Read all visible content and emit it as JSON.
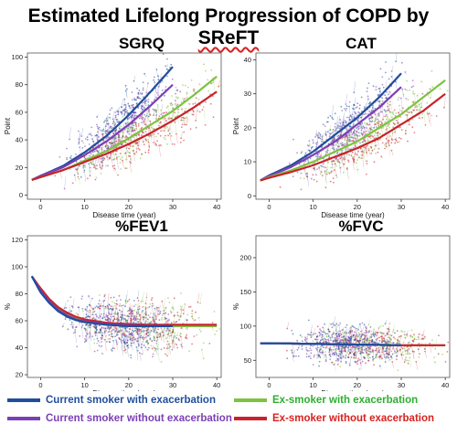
{
  "title": {
    "before": "Estimated Lifelong Progression of COPD by ",
    "emph": "SReFT"
  },
  "legend": [
    {
      "label": "Current smoker with exacerbation",
      "color": "#1f4e9c",
      "text_color": "#1f4e9c"
    },
    {
      "label": "Current smoker without exacerbation",
      "color": "#7b3fb5",
      "text_color": "#7b3fb5"
    },
    {
      "label": "Ex-smoker with exacerbation",
      "color": "#7cc341",
      "text_color": "#2fae2f"
    },
    {
      "label": "Ex-smoker without exacerbation",
      "color": "#c8232c",
      "text_color": "#d9211f"
    }
  ],
  "chart_data": [
    {
      "type": "line",
      "title": "SGRQ",
      "xlabel": "Disease time (year)",
      "ylabel": "Point",
      "xlim": [
        -3,
        41
      ],
      "ylim": [
        -3,
        103
      ],
      "xticks": [
        0,
        10,
        20,
        30,
        40
      ],
      "yticks": [
        0,
        20,
        40,
        60,
        80,
        100
      ],
      "scatter": true,
      "series": [
        {
          "legend_index": 0,
          "x": [
            -2,
            0,
            5,
            10,
            15,
            20,
            25,
            30
          ],
          "values": [
            11,
            14,
            21,
            31,
            43,
            58,
            75,
            93
          ]
        },
        {
          "legend_index": 1,
          "x": [
            -2,
            0,
            5,
            10,
            15,
            20,
            25,
            30
          ],
          "values": [
            11,
            14,
            20,
            29,
            39,
            51,
            65,
            80
          ]
        },
        {
          "legend_index": 2,
          "x": [
            -2,
            0,
            5,
            10,
            15,
            20,
            25,
            30,
            35,
            40
          ],
          "values": [
            11,
            13,
            18,
            25,
            32,
            41,
            51,
            61,
            73,
            86
          ]
        },
        {
          "legend_index": 3,
          "x": [
            -2,
            0,
            5,
            10,
            15,
            20,
            25,
            30,
            35,
            40
          ],
          "values": [
            11,
            13,
            18,
            24,
            30,
            37,
            45,
            54,
            64,
            75
          ]
        }
      ]
    },
    {
      "type": "line",
      "title": "CAT",
      "xlabel": "Disease time (year)",
      "ylabel": "Point",
      "xlim": [
        -3,
        41
      ],
      "ylim": [
        -1,
        42
      ],
      "xticks": [
        0,
        10,
        20,
        30,
        40
      ],
      "yticks": [
        0,
        10,
        20,
        30,
        40
      ],
      "scatter": true,
      "series": [
        {
          "legend_index": 0,
          "x": [
            -2,
            0,
            5,
            10,
            15,
            20,
            25,
            30
          ],
          "values": [
            4.5,
            6,
            9,
            13,
            18,
            23,
            29,
            36
          ]
        },
        {
          "legend_index": 1,
          "x": [
            -2,
            0,
            5,
            10,
            15,
            20,
            25,
            30
          ],
          "values": [
            4.5,
            5.8,
            8.5,
            12,
            16,
            21,
            26,
            32
          ]
        },
        {
          "legend_index": 2,
          "x": [
            -2,
            0,
            5,
            10,
            15,
            20,
            25,
            30,
            35,
            40
          ],
          "values": [
            4.5,
            5.5,
            7.5,
            10,
            13,
            16,
            20,
            24,
            29,
            34
          ]
        },
        {
          "legend_index": 3,
          "x": [
            -2,
            0,
            5,
            10,
            15,
            20,
            25,
            30,
            35,
            40
          ],
          "values": [
            4.5,
            5.3,
            7,
            9,
            11.5,
            14,
            17,
            21,
            25,
            30
          ]
        }
      ]
    },
    {
      "type": "line",
      "title": "%FEV1",
      "xlabel": "Disease time (year)",
      "ylabel": "%",
      "xlim": [
        -3,
        41
      ],
      "ylim": [
        18,
        123
      ],
      "xticks": [
        0,
        10,
        20,
        30,
        40
      ],
      "yticks": [
        20,
        40,
        60,
        80,
        100,
        120
      ],
      "scatter": true,
      "series": [
        {
          "legend_index": 2,
          "x": [
            -2,
            0,
            2,
            4,
            6,
            8,
            10,
            15,
            20,
            25,
            30,
            35,
            40
          ],
          "values": [
            93,
            83,
            75,
            69,
            65,
            62,
            60,
            57.5,
            56.5,
            56,
            56,
            56,
            56
          ]
        },
        {
          "legend_index": 3,
          "x": [
            -2,
            0,
            2,
            4,
            6,
            8,
            10,
            15,
            20,
            25,
            30,
            35,
            40
          ],
          "values": [
            93,
            84,
            76,
            70,
            66,
            63,
            61,
            58.5,
            57.5,
            57,
            57,
            57,
            57
          ]
        },
        {
          "legend_index": 1,
          "x": [
            -2,
            0,
            2,
            4,
            6,
            8,
            10,
            15,
            20,
            25,
            30
          ],
          "values": [
            93,
            82,
            74,
            68,
            64,
            61,
            59.5,
            57.5,
            56.5,
            56,
            56
          ]
        },
        {
          "legend_index": 0,
          "x": [
            -2,
            0,
            2,
            4,
            6,
            8,
            10,
            15,
            20,
            25,
            30
          ],
          "values": [
            93,
            81,
            73,
            67,
            63,
            60.5,
            59,
            57,
            56,
            56,
            56
          ]
        }
      ]
    },
    {
      "type": "line",
      "title": "%FVC",
      "xlabel": "Disease time (year)",
      "ylabel": "%",
      "xlim": [
        -3,
        41
      ],
      "ylim": [
        25,
        232
      ],
      "xticks": [
        0,
        10,
        20,
        30,
        40
      ],
      "yticks": [
        50,
        100,
        150,
        200
      ],
      "scatter": true,
      "series": [
        {
          "legend_index": 2,
          "x": [
            -2,
            0,
            10,
            20,
            30,
            40
          ],
          "values": [
            75,
            75,
            74,
            73,
            72,
            72
          ]
        },
        {
          "legend_index": 3,
          "x": [
            -2,
            0,
            10,
            20,
            30,
            40
          ],
          "values": [
            75,
            75,
            74,
            73,
            72,
            72
          ]
        },
        {
          "legend_index": 1,
          "x": [
            -2,
            0,
            10,
            20,
            30
          ],
          "values": [
            75,
            75,
            74,
            73,
            72
          ]
        },
        {
          "legend_index": 0,
          "x": [
            -2,
            0,
            10,
            20,
            30
          ],
          "values": [
            75,
            75,
            74,
            73,
            72
          ]
        }
      ]
    }
  ]
}
